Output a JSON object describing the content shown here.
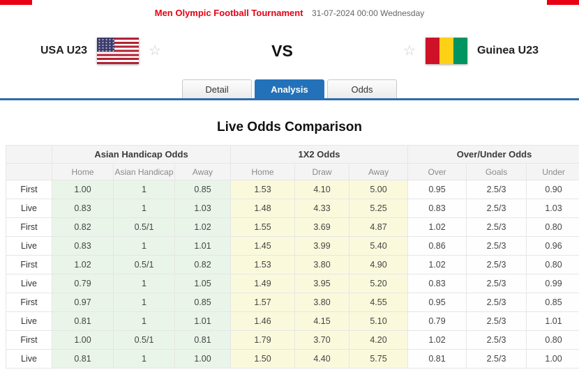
{
  "header": {
    "title": "Men Olympic Football Tournament",
    "datetime": "31-07-2024 00:00 Wednesday"
  },
  "match": {
    "home_team": "USA U23",
    "away_team": "Guinea U23",
    "vs_label": "VS",
    "home_flag": "usa-flag",
    "away_flag": "guinea-flag"
  },
  "tabs": [
    {
      "label": "Detail",
      "active": false
    },
    {
      "label": "Analysis",
      "active": true
    },
    {
      "label": "Odds",
      "active": false
    }
  ],
  "section_title": "Live Odds Comparison",
  "odds_table": {
    "groups": [
      "Asian Handicap Odds",
      "1X2 Odds",
      "Over/Under Odds"
    ],
    "columns": [
      "Home",
      "Asian Handicap",
      "Away",
      "Home",
      "Draw",
      "Away",
      "Over",
      "Goals",
      "Under"
    ],
    "rows": [
      {
        "label": "First",
        "values": [
          "1.00",
          "1",
          "0.85",
          "1.53",
          "4.10",
          "5.00",
          "0.95",
          "2.5/3",
          "0.90"
        ]
      },
      {
        "label": "Live",
        "values": [
          "0.83",
          "1",
          "1.03",
          "1.48",
          "4.33",
          "5.25",
          "0.83",
          "2.5/3",
          "1.03"
        ]
      },
      {
        "label": "First",
        "values": [
          "0.82",
          "0.5/1",
          "1.02",
          "1.55",
          "3.69",
          "4.87",
          "1.02",
          "2.5/3",
          "0.80"
        ]
      },
      {
        "label": "Live",
        "values": [
          "0.83",
          "1",
          "1.01",
          "1.45",
          "3.99",
          "5.40",
          "0.86",
          "2.5/3",
          "0.96"
        ]
      },
      {
        "label": "First",
        "values": [
          "1.02",
          "0.5/1",
          "0.82",
          "1.53",
          "3.80",
          "4.90",
          "1.02",
          "2.5/3",
          "0.80"
        ]
      },
      {
        "label": "Live",
        "values": [
          "0.79",
          "1",
          "1.05",
          "1.49",
          "3.95",
          "5.20",
          "0.83",
          "2.5/3",
          "0.99"
        ]
      },
      {
        "label": "First",
        "values": [
          "0.97",
          "1",
          "0.85",
          "1.57",
          "3.80",
          "4.55",
          "0.95",
          "2.5/3",
          "0.85"
        ]
      },
      {
        "label": "Live",
        "values": [
          "0.81",
          "1",
          "1.01",
          "1.46",
          "4.15",
          "5.10",
          "0.79",
          "2.5/3",
          "1.01"
        ]
      },
      {
        "label": "First",
        "values": [
          "1.00",
          "0.5/1",
          "0.81",
          "1.79",
          "3.70",
          "4.20",
          "1.02",
          "2.5/3",
          "0.80"
        ]
      },
      {
        "label": "Live",
        "values": [
          "0.81",
          "1",
          "1.00",
          "1.50",
          "4.40",
          "5.75",
          "0.81",
          "2.5/3",
          "1.00"
        ]
      }
    ]
  },
  "colors": {
    "title_red": "#e60012",
    "tab_active_blue": "#2372b9",
    "underline_blue": "#2b6cb0",
    "asian_handicap_bg": "#e9f5e9",
    "x12_bg": "#fbf9dc",
    "usa_flag": [
      "#B22234",
      "#ffffff",
      "#3C3B6E"
    ],
    "guinea_flag": [
      "#CE1126",
      "#FCD116",
      "#009460"
    ]
  }
}
